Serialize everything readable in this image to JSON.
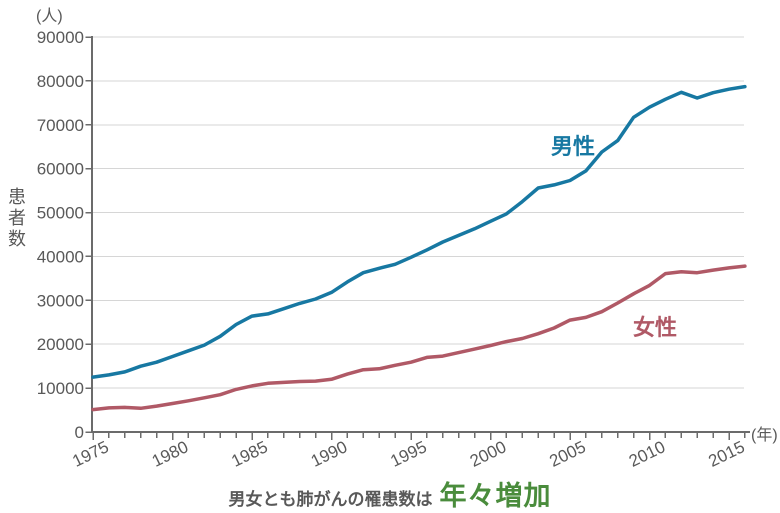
{
  "chart_data": {
    "type": "line",
    "ylabel": "患者数",
    "y_unit_label": "(人)",
    "x_unit_label": "(年)",
    "ylim": [
      0,
      90000
    ],
    "ytick_step": 10000,
    "grid": "horizontal",
    "legend": "inline-labels",
    "x": [
      1975,
      1976,
      1977,
      1978,
      1979,
      1980,
      1981,
      1982,
      1983,
      1984,
      1985,
      1986,
      1987,
      1988,
      1989,
      1990,
      1991,
      1992,
      1993,
      1994,
      1995,
      1996,
      1997,
      1998,
      1999,
      2000,
      2001,
      2002,
      2003,
      2004,
      2005,
      2006,
      2007,
      2008,
      2009,
      2010,
      2011,
      2012,
      2013,
      2014,
      2015,
      2016
    ],
    "xtick_labels": [
      1975,
      1980,
      1985,
      1990,
      1995,
      2000,
      2005,
      2010,
      2015
    ],
    "series": [
      {
        "id": "male",
        "name": "男性",
        "color": "#1778a2",
        "values": [
          12500,
          13000,
          13700,
          15000,
          15900,
          17200,
          18500,
          19800,
          21800,
          24500,
          26400,
          26900,
          28100,
          29300,
          30300,
          31800,
          34200,
          36300,
          37300,
          38200,
          39800,
          41500,
          43300,
          44800,
          46300,
          48000,
          49700,
          52500,
          55600,
          56300,
          57300,
          59500,
          63800,
          66400,
          71700,
          74000,
          75800,
          77400,
          76100,
          77300,
          78100,
          78700
        ]
      },
      {
        "id": "female",
        "name": "女性",
        "color": "#b05966",
        "values": [
          5100,
          5500,
          5600,
          5400,
          5900,
          6500,
          7100,
          7800,
          8500,
          9700,
          10500,
          11100,
          11300,
          11500,
          11600,
          12000,
          13200,
          14200,
          14400,
          15200,
          15900,
          17000,
          17300,
          18100,
          18900,
          19700,
          20600,
          21300,
          22400,
          23700,
          25500,
          26100,
          27400,
          29400,
          31500,
          33400,
          36100,
          36500,
          36300,
          36900,
          37400,
          37800
        ]
      }
    ]
  },
  "caption": {
    "prefix": "男女とも肺がんの罹患数は",
    "prefix_color": "#595959",
    "highlight": "年々増加",
    "highlight_color": "#4a8c3c"
  },
  "style_colors": {
    "grid": "#d6d6d6",
    "axis": "#6b6b6b",
    "tick_text": "#595959"
  }
}
